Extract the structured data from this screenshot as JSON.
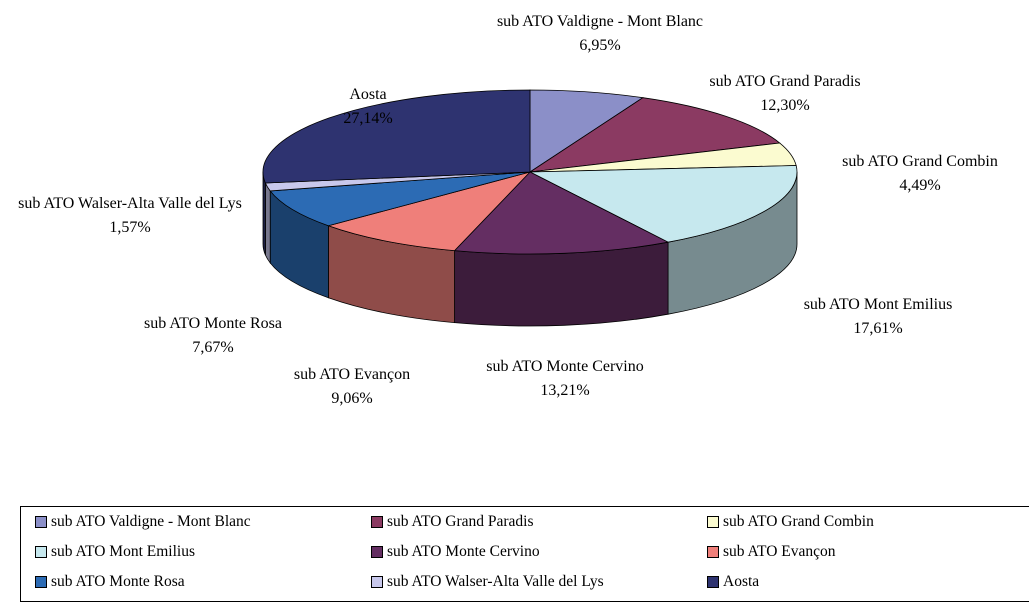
{
  "chart_data": {
    "type": "pie3d",
    "categories": [
      "sub ATO Valdigne - Mont Blanc",
      "sub ATO Grand Paradis",
      "sub ATO Grand Combin",
      "sub ATO Mont Emilius",
      "sub ATO Monte Cervino",
      "sub ATO Evançon",
      "sub ATO Monte Rosa",
      "sub ATO Walser-Alta Valle del Lys",
      "Aosta"
    ],
    "values": [
      6.95,
      12.3,
      4.49,
      17.61,
      13.21,
      9.06,
      7.67,
      1.57,
      27.14
    ],
    "value_labels": [
      "6,95%",
      "12,30%",
      "4,49%",
      "17,61%",
      "13,21%",
      "9,06%",
      "7,67%",
      "1,57%",
      "27,14%"
    ],
    "colors": [
      "#8b8fc8",
      "#8b3a62",
      "#fbfbd0",
      "#c6e8ee",
      "#642e62",
      "#ef7f7a",
      "#2c6bb4",
      "#c8c8ec",
      "#2e3370"
    ],
    "legend": "bottom"
  }
}
